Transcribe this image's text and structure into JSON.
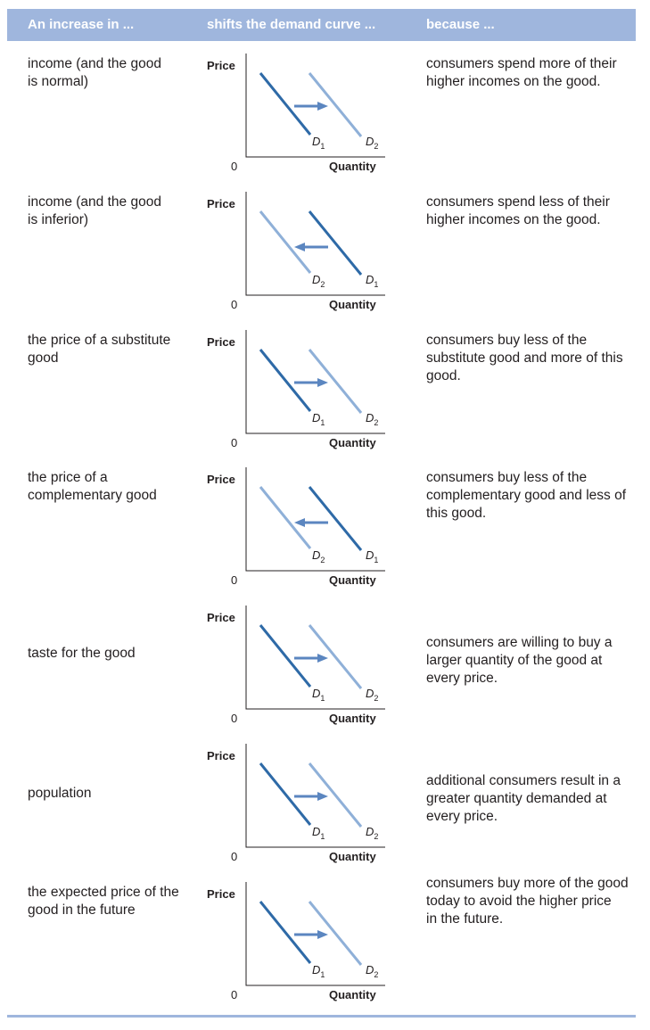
{
  "header": {
    "col1": "An increase in ...",
    "col2": "shifts the demand curve ...",
    "col3": "because ..."
  },
  "graph_labels": {
    "price": "Price",
    "quantity": "Quantity",
    "origin": "0",
    "curve_letter": "D",
    "curve1_sub": "1",
    "curve2_sub": "2"
  },
  "colors": {
    "header_bg": "#9fb6dd",
    "curve_d1": "#2e6aa7",
    "curve_d2": "#8fb0d8",
    "arrow": "#5b86c0"
  },
  "rows": [
    {
      "cause": "income (and the good\nis normal)",
      "shift": "right",
      "reason": "consumers spend more of their\nhigher incomes on the good."
    },
    {
      "cause": "income (and the good\nis inferior)",
      "shift": "left",
      "reason": "consumers spend less of their\nhigher incomes on the good."
    },
    {
      "cause": "the price of a substitute\ngood",
      "shift": "right",
      "reason": "consumers buy less of the\nsubstitute good and more of this\ngood."
    },
    {
      "cause": "the price of a\ncomplementary good",
      "shift": "left",
      "reason": "consumers buy less of the\ncomplementary good and less of\nthis good."
    },
    {
      "cause": "taste for the good",
      "shift": "right",
      "reason": "consumers are willing to buy a\nlarger quantity of the good at\nevery price."
    },
    {
      "cause": "population",
      "shift": "right",
      "reason": "additional consumers result in a\ngreater quantity demanded at\nevery price."
    },
    {
      "cause": "the expected price of the\ngood in the future",
      "shift": "right",
      "reason": "consumers buy more of the good\ntoday to avoid the higher price\nin the future."
    }
  ]
}
